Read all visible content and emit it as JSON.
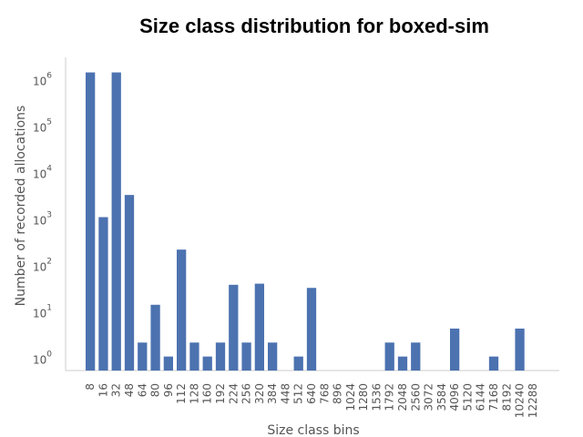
{
  "chart_data": {
    "type": "bar",
    "title": "Size class distribution for boxed-sim",
    "xlabel": "Size class bins",
    "ylabel": "Number of recorded allocations",
    "yscale": "log",
    "ylim": [
      0.5,
      2000000
    ],
    "y_ticks": [
      {
        "value": 1,
        "base": "10",
        "exp": "0"
      },
      {
        "value": 10,
        "base": "10",
        "exp": "1"
      },
      {
        "value": 100,
        "base": "10",
        "exp": "2"
      },
      {
        "value": 1000,
        "base": "10",
        "exp": "3"
      },
      {
        "value": 10000,
        "base": "10",
        "exp": "4"
      },
      {
        "value": 100000,
        "base": "10",
        "exp": "5"
      },
      {
        "value": 1000000,
        "base": "10",
        "exp": "6"
      }
    ],
    "grid": false,
    "bar_color": "#4c72b0",
    "categories": [
      "8",
      "16",
      "32",
      "48",
      "64",
      "80",
      "96",
      "112",
      "128",
      "160",
      "192",
      "224",
      "256",
      "320",
      "384",
      "448",
      "512",
      "640",
      "768",
      "896",
      "1024",
      "1280",
      "1536",
      "1792",
      "2048",
      "2560",
      "3072",
      "3584",
      "4096",
      "5120",
      "6144",
      "7168",
      "8192",
      "10240",
      "12288"
    ],
    "values": [
      1300000,
      1000,
      1300000,
      3000,
      2,
      13,
      1,
      200,
      2,
      1,
      2,
      35,
      2,
      37,
      2,
      0,
      1,
      30,
      0,
      0,
      0,
      0,
      0,
      2,
      1,
      2,
      0,
      0,
      4,
      0,
      0,
      1,
      0,
      4,
      0
    ]
  }
}
